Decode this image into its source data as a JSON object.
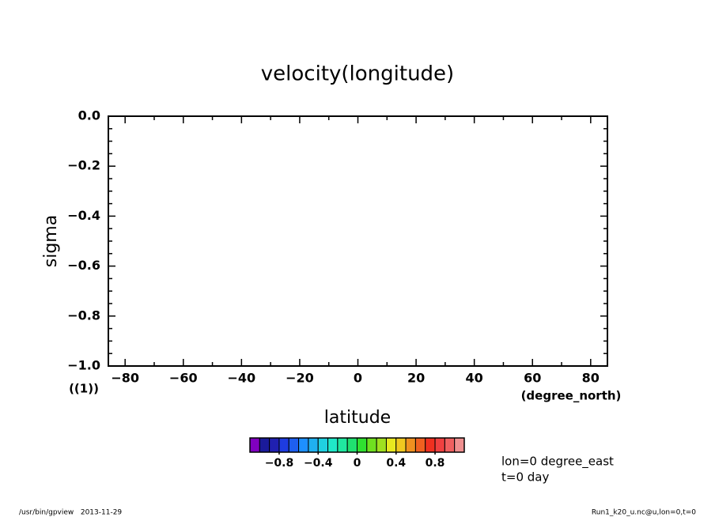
{
  "chart_data": {
    "type": "contour",
    "title": "velocity(longitude)",
    "x_label": "latitude",
    "x_unit": "(degree_north)",
    "y_label": "sigma",
    "y_unit": "((1))",
    "xlim": [
      -85.76,
      85.76
    ],
    "xticks": [
      {
        "value": -80,
        "label": "−80"
      },
      {
        "value": -60,
        "label": "−60"
      },
      {
        "value": -40,
        "label": "−40"
      },
      {
        "value": -20,
        "label": "−20"
      },
      0,
      20,
      40,
      60,
      80
    ],
    "xminorticks": [
      -70,
      -50,
      -30,
      -10,
      10,
      30,
      50,
      70
    ],
    "ylim": [
      -1,
      0
    ],
    "yticks": [
      {
        "value": 0,
        "label": "0.0"
      },
      {
        "value": -0.2,
        "label": "−0.2"
      },
      {
        "value": -0.4,
        "label": "−0.4"
      },
      {
        "value": -0.6,
        "label": "−0.6"
      },
      {
        "value": -0.8,
        "label": "−0.8"
      },
      {
        "value": -1,
        "label": "−1.0"
      }
    ],
    "yminorticks": [
      -0.05,
      -0.1,
      -0.15,
      -0.25,
      -0.3,
      -0.35,
      -0.45,
      -0.5,
      -0.55,
      -0.65,
      -0.7,
      -0.75,
      -0.85,
      -0.9,
      -0.95
    ],
    "colorbar": {
      "lim": [
        -1.1,
        1.1
      ],
      "colors": [
        "#8000c0",
        "#1a1a9a",
        "#2020b0",
        "#1e3ce0",
        "#1e5ff0",
        "#1e90ff",
        "#20b0f0",
        "#20d0e0",
        "#20e8c8",
        "#20e8a0",
        "#20e070",
        "#30e030",
        "#70e020",
        "#a0e020",
        "#e8e820",
        "#f0c820",
        "#f09020",
        "#f06020",
        "#f03020",
        "#f04040",
        "#f06060",
        "#f09090"
      ],
      "ticks": [
        {
          "value": -0.8,
          "label": "−0.8"
        },
        {
          "value": -0.4,
          "label": "−0.4"
        },
        0,
        0.4,
        0.8
      ]
    },
    "annotations": [
      "lon=0 degree_east",
      "t=0 day"
    ],
    "footer_left": "/usr/bin/gpview   2013-11-29",
    "footer_right": "Run1_k20_u.nc@u,lon=0,t=0"
  }
}
